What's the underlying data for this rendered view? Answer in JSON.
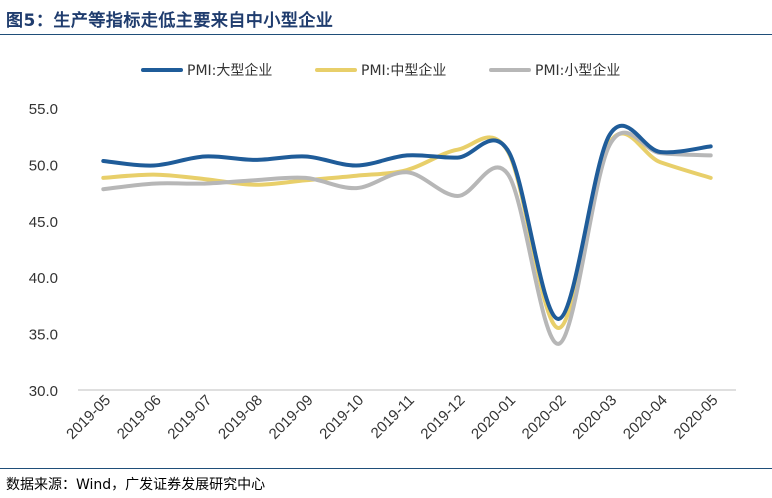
{
  "header": {
    "title": "图5：生产等指标走低主要来自中小型企业"
  },
  "footer": {
    "source": "数据来源：Wind，广发证券发展研究中心"
  },
  "chart_data": {
    "type": "line",
    "title": "",
    "xlabel": "",
    "ylabel": "",
    "x": [
      "2019-05",
      "2019-06",
      "2019-07",
      "2019-08",
      "2019-09",
      "2019-10",
      "2019-11",
      "2019-12",
      "2020-01",
      "2020-02",
      "2020-03",
      "2020-04",
      "2020-05"
    ],
    "ylim": [
      30.0,
      55.0
    ],
    "yticks": [
      "30.0",
      "35.0",
      "40.0",
      "45.0",
      "50.0",
      "55.0"
    ],
    "grid": false,
    "legend": "top",
    "series": [
      {
        "name": "PMI:大型企业",
        "color": "#1f5c99",
        "values": [
          50.3,
          49.9,
          50.7,
          50.4,
          50.7,
          49.9,
          50.8,
          50.6,
          51.2,
          36.3,
          52.6,
          51.1,
          51.6
        ]
      },
      {
        "name": "PMI:中型企业",
        "color": "#e8cf6a",
        "values": [
          48.8,
          49.1,
          48.7,
          48.2,
          48.6,
          49.0,
          49.5,
          51.3,
          51.1,
          35.5,
          51.9,
          50.2,
          48.8
        ]
      },
      {
        "name": "PMI:小型企业",
        "color": "#b7b7b7",
        "values": [
          47.8,
          48.3,
          48.3,
          48.6,
          48.8,
          47.9,
          49.3,
          47.2,
          49.1,
          34.1,
          51.7,
          51.0,
          50.8
        ]
      }
    ]
  }
}
